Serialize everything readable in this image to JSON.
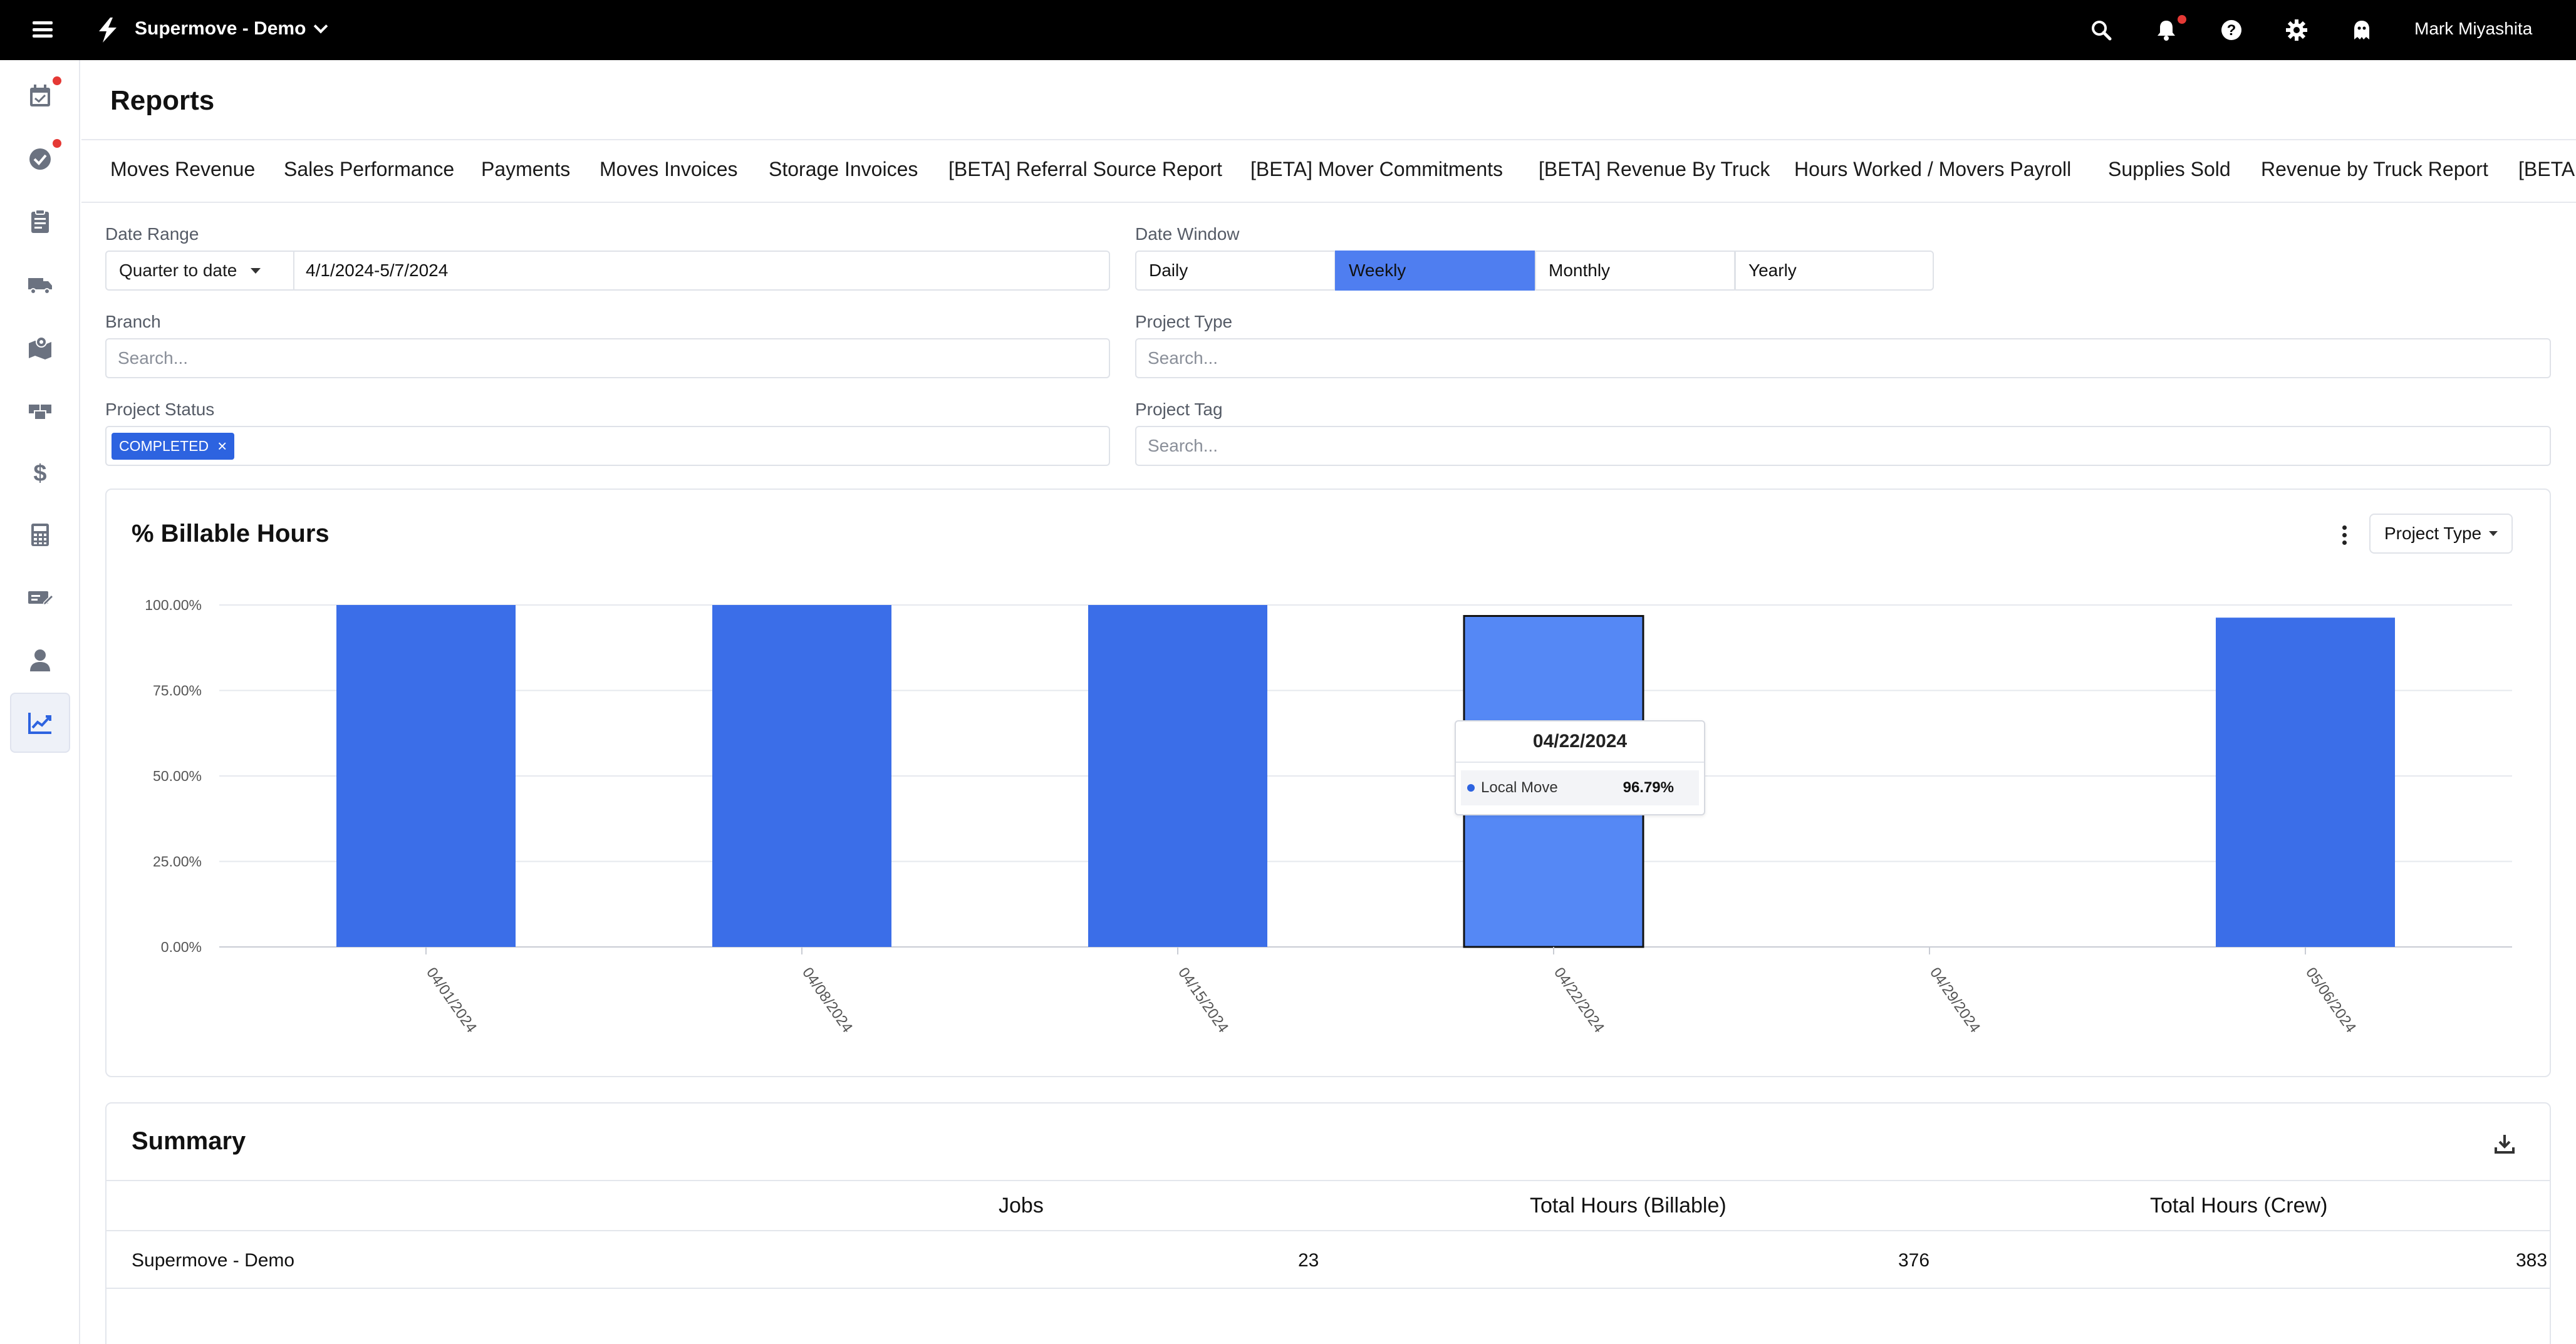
{
  "app": {
    "org_name": "Supermove - Demo",
    "user_name": "Mark Miyashita"
  },
  "page": {
    "title": "Reports"
  },
  "tabs": [
    "Moves Revenue",
    "Sales Performance",
    "Payments",
    "Moves Invoices",
    "Storage Invoices",
    "[BETA] Referral Source Report",
    "[BETA] Mover Commitments",
    "[BETA] Revenue By Truck",
    "Hours Worked / Movers Payroll",
    "Supplies Sold",
    "Revenue by Truck Report",
    "[BETA"
  ],
  "filters": {
    "date_range_label": "Date Range",
    "date_range_option": "Quarter to date",
    "date_range_value": "4/1/2024-5/7/2024",
    "date_window_label": "Date Window",
    "date_window_options": [
      "Daily",
      "Weekly",
      "Monthly",
      "Yearly"
    ],
    "date_window_selected": "Weekly",
    "branch_label": "Branch",
    "branch_placeholder": "Search...",
    "project_type_label": "Project Type",
    "project_type_placeholder": "Search...",
    "project_status_label": "Project Status",
    "project_status_chip": "COMPLETED",
    "project_tag_label": "Project Tag",
    "project_tag_placeholder": "Search..."
  },
  "chart_card": {
    "title": "% Billable Hours",
    "group_by_button": "Project Type",
    "tooltip": {
      "date": "04/22/2024",
      "series": "Local Move",
      "value": "96.79%"
    }
  },
  "chart_data": {
    "type": "bar",
    "title": "% Billable Hours",
    "categories": [
      "04/01/2024",
      "04/08/2024",
      "04/15/2024",
      "04/22/2024",
      "04/29/2024",
      "05/06/2024"
    ],
    "series": [
      {
        "name": "Local Move",
        "values": [
          100,
          100,
          100,
          96.79,
          null,
          96.3
        ]
      }
    ],
    "y_ticks": [
      "0.00%",
      "25.00%",
      "50.00%",
      "75.00%",
      "100.00%"
    ],
    "ylim": [
      0,
      100
    ],
    "highlighted_category": "04/22/2024",
    "colors": {
      "bar": "#3b6ee8",
      "bar_highlight": "#5588f5"
    },
    "grid": true
  },
  "summary": {
    "title": "Summary",
    "columns": [
      "",
      "Jobs",
      "Total Hours (Billable)",
      "Total Hours (Crew)"
    ],
    "rows": [
      [
        "Supermove - Demo",
        "23",
        "376",
        "383"
      ]
    ]
  },
  "colors": {
    "accent": "#2d63e0",
    "active_window": "#4f7ef0",
    "topbar": "#000000"
  }
}
